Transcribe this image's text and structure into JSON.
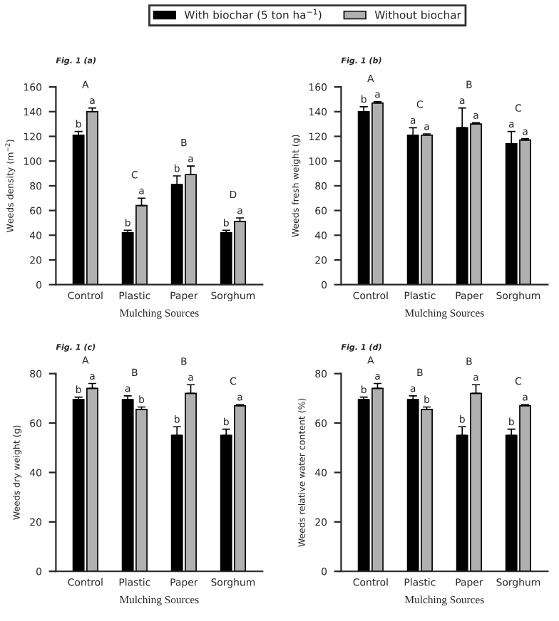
{
  "chart_data": [
    {
      "type": "bar",
      "title": "Fig. 1 (a)",
      "xlabel": "Mulching Sources",
      "ylabel": "Weeds density (m$^{−2}$)",
      "categories": [
        "Control",
        "Plastic",
        "Paper",
        "Sorghum"
      ],
      "ylim": [
        0,
        160
      ],
      "yticks": [
        0,
        20,
        40,
        60,
        80,
        100,
        120,
        140,
        160
      ],
      "legend": "top",
      "grid": false,
      "series": [
        {
          "name": "With biochar (5 ton ha$^{−1}$)",
          "color": "#000000",
          "values": [
            121,
            42,
            81,
            42
          ],
          "errors": [
            3,
            2,
            7,
            2
          ],
          "value_labels": [
            "b",
            "b",
            "b",
            "b"
          ]
        },
        {
          "name": "Without biochar",
          "color": "#b0b0b0",
          "values": [
            140,
            64,
            89,
            51
          ],
          "errors": [
            3,
            6,
            7,
            3
          ],
          "value_labels": [
            "a",
            "a",
            "a",
            "a"
          ]
        }
      ],
      "annotations": [
        "A",
        "C",
        "B",
        "D"
      ]
    },
    {
      "type": "bar",
      "title": "Fig. 1 (b)",
      "xlabel": "Mulching Sources",
      "ylabel": "Weeds fresh weight (g)",
      "categories": [
        "Control",
        "Plastic",
        "Paper",
        "Sorghum"
      ],
      "ylim": [
        0,
        160
      ],
      "yticks": [
        0,
        20,
        40,
        60,
        80,
        100,
        120,
        140,
        160
      ],
      "grid": false,
      "series": [
        {
          "color": "#000000",
          "values": [
            140,
            121,
            127,
            114
          ],
          "errors": [
            4,
            6,
            16,
            10
          ],
          "value_labels": [
            "b",
            "a",
            "a",
            "a"
          ]
        },
        {
          "color": "#b0b0b0",
          "values": [
            147,
            121,
            130,
            117
          ],
          "errors": [
            1,
            1,
            1,
            1
          ],
          "value_labels": [
            "a",
            "a",
            "a",
            "a"
          ]
        }
      ],
      "annotations": [
        "A",
        "C",
        "B",
        "C"
      ]
    },
    {
      "type": "bar",
      "title": "Fig. 1 (c)",
      "xlabel": "Mulching Sources",
      "ylabel": "Weeds dry weight (g)",
      "categories": [
        "Control",
        "Plastic",
        "Paper",
        "Sorghum"
      ],
      "ylim": [
        0,
        80
      ],
      "yticks": [
        0,
        20,
        40,
        60,
        80
      ],
      "grid": false,
      "series": [
        {
          "color": "#000000",
          "values": [
            69.5,
            69.5,
            55,
            55
          ],
          "errors": [
            1,
            1.5,
            3.5,
            2.5
          ],
          "value_labels": [
            "b",
            "a",
            "b",
            "b"
          ]
        },
        {
          "color": "#b0b0b0",
          "values": [
            74,
            65.5,
            72,
            67
          ],
          "errors": [
            2,
            1,
            3.5,
            0.5
          ],
          "value_labels": [
            "a",
            "b",
            "a",
            "a"
          ]
        }
      ],
      "annotations": [
        "A",
        "B",
        "B",
        "C"
      ]
    },
    {
      "type": "bar",
      "title": "Fig. 1 (d)",
      "xlabel": "Mulching Sources",
      "ylabel": "Weeds relative water content (%)",
      "categories": [
        "Control",
        "Plastic",
        "Paper",
        "Sorghum"
      ],
      "ylim": [
        0,
        80
      ],
      "yticks": [
        0,
        20,
        40,
        60,
        80
      ],
      "grid": false,
      "series": [
        {
          "color": "#000000",
          "values": [
            69.5,
            69.5,
            55,
            55
          ],
          "errors": [
            1,
            1.5,
            3.5,
            2.5
          ],
          "value_labels": [
            "b",
            "a",
            "b",
            "b"
          ]
        },
        {
          "color": "#b0b0b0",
          "values": [
            74,
            65.5,
            72,
            67
          ],
          "errors": [
            2,
            1,
            3.5,
            0.5
          ],
          "value_labels": [
            "a",
            "b",
            "a",
            "a"
          ]
        }
      ],
      "annotations": [
        "A",
        "B",
        "B",
        "C"
      ]
    }
  ]
}
